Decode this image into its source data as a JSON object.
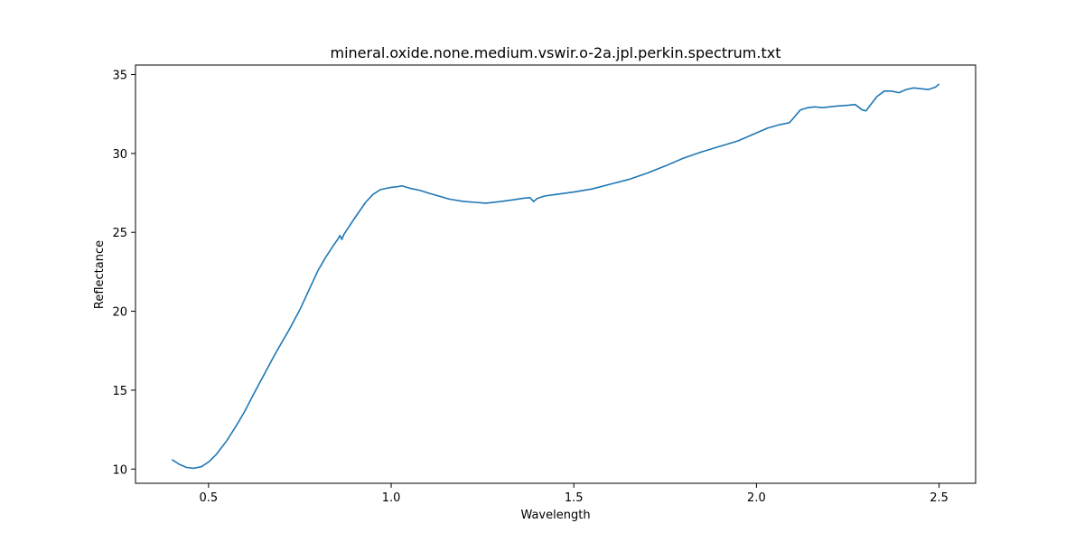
{
  "chart_data": {
    "type": "line",
    "title": "mineral.oxide.none.medium.vswir.o-2a.jpl.perkin.spectrum.txt",
    "xlabel": "Wavelength",
    "ylabel": "Reflectance",
    "xlim": [
      0.3,
      2.6
    ],
    "ylim": [
      9.1,
      35.6
    ],
    "xticks": [
      0.5,
      1.0,
      1.5,
      2.0,
      2.5
    ],
    "xtick_labels": [
      "0.5",
      "1.0",
      "1.5",
      "2.0",
      "2.5"
    ],
    "yticks": [
      10,
      15,
      20,
      25,
      30,
      35
    ],
    "ytick_labels": [
      "10",
      "15",
      "20",
      "25",
      "30",
      "35"
    ],
    "grid": false,
    "line_color": "#1f77b4",
    "series": [
      {
        "x": [
          0.4,
          0.42,
          0.44,
          0.46,
          0.48,
          0.5,
          0.52,
          0.55,
          0.58,
          0.6,
          0.62,
          0.65,
          0.68,
          0.7,
          0.72,
          0.75,
          0.78,
          0.8,
          0.82,
          0.84,
          0.855,
          0.86,
          0.865,
          0.87,
          0.9,
          0.93,
          0.95,
          0.97,
          1.0,
          1.02,
          1.03,
          1.05,
          1.08,
          1.1,
          1.13,
          1.16,
          1.2,
          1.23,
          1.26,
          1.3,
          1.33,
          1.36,
          1.38,
          1.39,
          1.4,
          1.42,
          1.45,
          1.5,
          1.55,
          1.6,
          1.65,
          1.7,
          1.75,
          1.8,
          1.85,
          1.9,
          1.95,
          2.0,
          2.03,
          2.06,
          2.09,
          2.1,
          2.12,
          2.14,
          2.16,
          2.18,
          2.2,
          2.22,
          2.25,
          2.27,
          2.29,
          2.3,
          2.31,
          2.33,
          2.35,
          2.37,
          2.39,
          2.41,
          2.43,
          2.45,
          2.47,
          2.49,
          2.5
        ],
        "y": [
          10.6,
          10.3,
          10.1,
          10.05,
          10.15,
          10.45,
          10.9,
          11.8,
          12.9,
          13.7,
          14.6,
          15.9,
          17.2,
          18.0,
          18.8,
          20.1,
          21.6,
          22.6,
          23.4,
          24.1,
          24.6,
          24.8,
          24.55,
          24.85,
          25.9,
          26.9,
          27.4,
          27.7,
          27.85,
          27.9,
          27.95,
          27.8,
          27.65,
          27.5,
          27.3,
          27.1,
          26.95,
          26.9,
          26.85,
          26.95,
          27.05,
          27.15,
          27.2,
          26.95,
          27.15,
          27.3,
          27.4,
          27.55,
          27.75,
          28.05,
          28.35,
          28.75,
          29.2,
          29.7,
          30.1,
          30.45,
          30.8,
          31.3,
          31.6,
          31.8,
          31.95,
          32.2,
          32.75,
          32.9,
          32.95,
          32.9,
          32.95,
          33.0,
          33.05,
          33.1,
          32.75,
          32.7,
          33.0,
          33.6,
          33.95,
          33.95,
          33.85,
          34.05,
          34.15,
          34.1,
          34.05,
          34.2,
          34.4
        ]
      }
    ]
  }
}
